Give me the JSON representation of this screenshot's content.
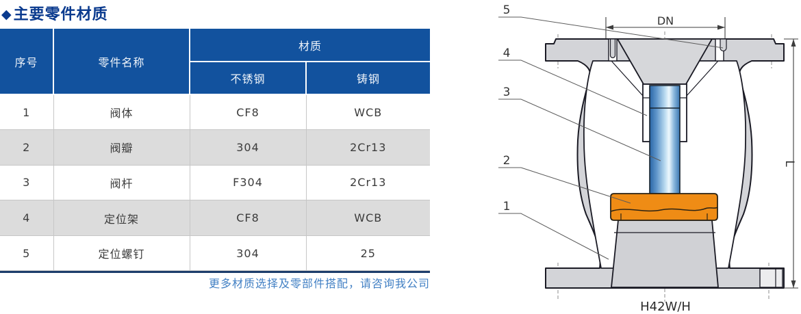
{
  "page": {
    "title_bullet": "◆",
    "title": "主要零件材质",
    "footer_note": "更多材质选择及零部件搭配，请咨询我公司"
  },
  "table": {
    "headers": {
      "no": "序号",
      "part": "零件名称",
      "material": "材质",
      "stainless": "不锈钢",
      "cast": "铸钢"
    },
    "rows": [
      {
        "no": "1",
        "part": "阀体",
        "stainless": "CF8",
        "cast": "WCB"
      },
      {
        "no": "2",
        "part": "阀瓣",
        "stainless": "304",
        "cast": "2Cr13"
      },
      {
        "no": "3",
        "part": "阀杆",
        "stainless": "F304",
        "cast": "2Cr13"
      },
      {
        "no": "4",
        "part": "定位架",
        "stainless": "CF8",
        "cast": "WCB"
      },
      {
        "no": "5",
        "part": "定位螺钉",
        "stainless": "304",
        "cast": "25"
      }
    ]
  },
  "diagram": {
    "callouts": {
      "c1": "1",
      "c2": "2",
      "c3": "3",
      "c4": "4",
      "c5": "5"
    },
    "dn_label": "DN",
    "l_label": "L",
    "model": "H42W/H",
    "colors": {
      "table_header_blue": "#12529e",
      "title_blue": "#0a3a8e",
      "note_blue": "#4280c4",
      "table_bottom_navy": "#1c3d6b",
      "row_alt_gray": "#dcdcdc",
      "body_gray": "#d3d4d8",
      "stem_blue": "#3a76b2",
      "disc_orange": "#ef8c15"
    }
  }
}
